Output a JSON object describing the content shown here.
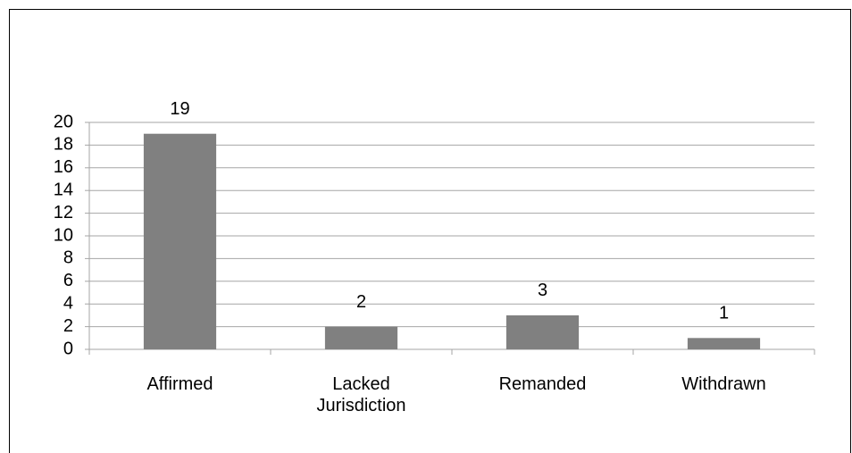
{
  "chart_data": {
    "type": "bar",
    "categories": [
      "Affirmed",
      "Lacked Jurisdiction",
      "Remanded",
      "Withdrawn"
    ],
    "values": [
      19,
      2,
      3,
      1
    ],
    "color": "#808080",
    "ylim": [
      0,
      20
    ],
    "yticks": [
      0,
      2,
      4,
      6,
      8,
      10,
      12,
      14,
      16,
      18,
      20
    ],
    "grid": true
  }
}
